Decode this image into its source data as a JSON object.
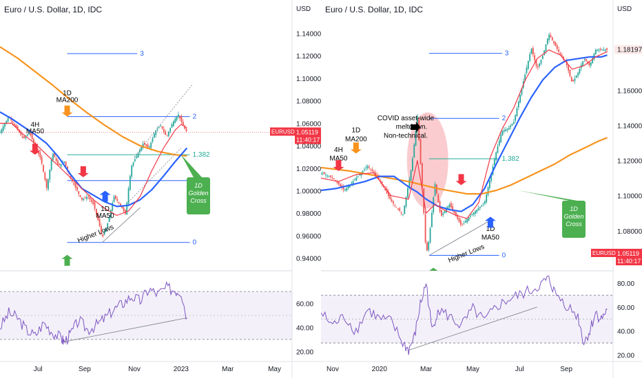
{
  "chart_data": [
    {
      "type": "line",
      "title": "Euro / U.S. Dollar, 1D, IDC",
      "ylabel": "USD",
      "ylim": [
        0.93,
        1.155
      ],
      "ytick_labels": [
        "1.14000",
        "1.12000",
        "1.10000",
        "1.08000",
        "1.06000",
        "1.04000",
        "1.02000",
        "1.00000",
        "0.98000",
        "0.96000",
        "0.94000"
      ],
      "yticks": [
        1.14,
        1.12,
        1.1,
        1.08,
        1.06,
        1.04,
        1.02,
        1.0,
        0.98,
        0.96,
        0.94
      ],
      "xlim": [
        0,
        100
      ],
      "x_tick_labels": [
        "Jul",
        "Sep",
        "Nov",
        "2023",
        "Mar",
        "May"
      ],
      "x_ticks": [
        13,
        29,
        46,
        62,
        78,
        94
      ],
      "last_x": 64,
      "price_badge": {
        "symbol": "EURUSD",
        "value": "1.05119",
        "countdown": "11:40:17",
        "color": "#f23645"
      },
      "price_path": {
        "x": [
          0,
          3,
          5,
          8,
          10,
          12,
          14,
          16,
          17,
          18,
          20,
          22,
          24,
          26,
          28,
          30,
          32,
          34,
          35,
          37,
          39,
          41,
          43,
          44,
          45,
          47,
          49,
          51,
          53,
          55,
          57,
          59,
          61,
          62,
          63,
          64
        ],
        "y": [
          1.052,
          1.066,
          1.058,
          1.046,
          1.052,
          1.04,
          1.028,
          1.002,
          1.018,
          1.034,
          1.022,
          1.026,
          1.012,
          1.002,
          0.992,
          0.995,
          0.988,
          0.97,
          0.958,
          0.972,
          0.995,
          0.988,
          0.979,
          1.002,
          1.022,
          1.032,
          1.042,
          1.038,
          1.052,
          1.058,
          1.048,
          1.06,
          1.068,
          1.062,
          1.056,
          1.052
        ]
      },
      "series": [
        {
          "name": "1D MA200",
          "color": "#f7931e",
          "values_x": [
            0,
            6,
            12,
            18,
            24,
            30,
            36,
            42,
            48,
            54,
            60,
            64
          ],
          "values_y": [
            1.128,
            1.118,
            1.106,
            1.094,
            1.081,
            1.069,
            1.058,
            1.048,
            1.04,
            1.035,
            1.032,
            1.031
          ]
        },
        {
          "name": "1D MA50",
          "color": "#2962ff",
          "values_x": [
            0,
            4,
            8,
            12,
            16,
            20,
            24,
            28,
            32,
            36,
            40,
            44,
            48,
            52,
            56,
            60,
            64
          ],
          "values_y": [
            1.07,
            1.064,
            1.057,
            1.05,
            1.042,
            1.03,
            1.015,
            1.002,
            0.996,
            0.99,
            0.986,
            0.987,
            0.992,
            1.001,
            1.013,
            1.026,
            1.038
          ]
        },
        {
          "name": "4H MA50",
          "color": "#f23645",
          "values_x": [
            0,
            4,
            8,
            12,
            16,
            20,
            24,
            28,
            32,
            36,
            40,
            44,
            48,
            52,
            56,
            60,
            62,
            64
          ],
          "values_y": [
            1.06,
            1.06,
            1.05,
            1.042,
            1.032,
            1.022,
            1.012,
            1.002,
            0.992,
            0.984,
            0.978,
            0.982,
            0.995,
            1.018,
            1.038,
            1.054,
            1.059,
            1.056
          ]
        }
      ],
      "fib_levels": [
        {
          "label": "3",
          "value": 1.122,
          "color": "#2962ff",
          "x0": 23,
          "x1": 47
        },
        {
          "label": "2",
          "value": 1.066,
          "color": "#2962ff",
          "x0": 23,
          "x1": 65
        },
        {
          "label": "1.382",
          "value": 1.032,
          "color": "#22ab94",
          "x0": 23,
          "x1": 65
        },
        {
          "label": "1",
          "value": 1.009,
          "color": "#2962ff",
          "x0": 23,
          "x1": 65
        },
        {
          "label": "0",
          "value": 0.954,
          "color": "#2962ff",
          "x0": 23,
          "x1": 65
        }
      ],
      "annotations": [
        {
          "text": "1D",
          "x": 23,
          "y": 1.085
        },
        {
          "text": "MA200",
          "x": 23,
          "y": 1.079
        },
        {
          "text": "4H",
          "x": 12,
          "y": 1.057
        },
        {
          "text": "MA50",
          "x": 12,
          "y": 1.051
        },
        {
          "text": "1D",
          "x": 36,
          "y": 0.982
        },
        {
          "text": "MA50",
          "x": 36,
          "y": 0.976
        },
        {
          "text": "Higher Lows",
          "x": 33,
          "y": 0.96
        }
      ],
      "golden_cross": {
        "lines": [
          "1D",
          "Golden",
          "Cross"
        ],
        "color": "#4caf50"
      },
      "rsi": {
        "ylim": [
          15,
          85
        ],
        "tick_labels": [
          "60.00",
          "40.00",
          "20.00"
        ],
        "ticks": [
          60,
          40,
          20
        ],
        "band": [
          30,
          70
        ],
        "mid": 50,
        "x": [
          0,
          3,
          6,
          9,
          12,
          15,
          18,
          21,
          22,
          24,
          27,
          30,
          33,
          36,
          39,
          42,
          45,
          48,
          51,
          54,
          57,
          60,
          62,
          64
        ],
        "y": [
          40,
          52,
          48,
          38,
          33,
          44,
          36,
          31,
          28,
          34,
          46,
          38,
          42,
          48,
          55,
          60,
          66,
          62,
          72,
          68,
          73,
          71,
          70,
          48
        ]
      }
    },
    {
      "type": "line",
      "title": "Euro / U.S. Dollar, 1D, IDC",
      "ylabel": "USD",
      "ylim": [
        1.058,
        1.202
      ],
      "ytick_labels": [
        "1.16000",
        "1.14000",
        "1.12000",
        "1.10000",
        "1.08000"
      ],
      "yticks": [
        1.16,
        1.14,
        1.12,
        1.1,
        1.08
      ],
      "top_tick_label": "1.18197",
      "xlim": [
        0,
        100
      ],
      "x_tick_labels": [
        "Nov",
        "2020",
        "Mar",
        "May",
        "Jul",
        "Sep"
      ],
      "x_ticks": [
        4,
        20,
        36,
        52,
        68,
        84
      ],
      "last_x": 98,
      "price_badge": {
        "symbol": "EURUSD",
        "value": "1.05119",
        "countdown": "11:40:17",
        "color": "#f23645"
      },
      "price_path": {
        "x": [
          0,
          4,
          8,
          12,
          16,
          20,
          24,
          28,
          31,
          33,
          35,
          36,
          37,
          39,
          41,
          44,
          48,
          52,
          56,
          60,
          62,
          64,
          66,
          70,
          72,
          74,
          76,
          78,
          80,
          82,
          84,
          86,
          88,
          90,
          92,
          94,
          96,
          98
        ],
        "y": [
          1.113,
          1.11,
          1.103,
          1.11,
          1.117,
          1.109,
          1.097,
          1.089,
          1.116,
          1.145,
          1.096,
          1.066,
          1.075,
          1.107,
          1.088,
          1.095,
          1.083,
          1.09,
          1.096,
          1.125,
          1.137,
          1.138,
          1.142,
          1.17,
          1.184,
          1.172,
          1.18,
          1.192,
          1.186,
          1.18,
          1.175,
          1.164,
          1.17,
          1.178,
          1.174,
          1.183,
          1.183,
          1.183
        ]
      },
      "series": [
        {
          "name": "1D MA200",
          "color": "#f7931e",
          "values_x": [
            0,
            10,
            20,
            30,
            40,
            50,
            55,
            60,
            65,
            70,
            75,
            80,
            85,
            90,
            95,
            98
          ],
          "values_y": [
            1.116,
            1.114,
            1.111,
            1.108,
            1.104,
            1.101,
            1.101,
            1.103,
            1.106,
            1.11,
            1.114,
            1.118,
            1.123,
            1.127,
            1.131,
            1.133
          ]
        },
        {
          "name": "1D MA50",
          "color": "#2962ff",
          "values_x": [
            0,
            5,
            10,
            15,
            20,
            25,
            30,
            33,
            36,
            40,
            44,
            48,
            52,
            56,
            60,
            64,
            68,
            72,
            76,
            80,
            84,
            88,
            92,
            96,
            98
          ],
          "values_y": [
            1.103,
            1.104,
            1.106,
            1.108,
            1.111,
            1.111,
            1.105,
            1.102,
            1.098,
            1.094,
            1.092,
            1.091,
            1.095,
            1.104,
            1.118,
            1.131,
            1.144,
            1.156,
            1.166,
            1.173,
            1.177,
            1.178,
            1.179,
            1.179,
            1.18
          ]
        },
        {
          "name": "4H MA50",
          "color": "#f23645",
          "values_x": [
            0,
            6,
            12,
            18,
            24,
            30,
            33,
            36,
            39,
            42,
            46,
            50,
            54,
            58,
            62,
            66,
            70,
            74,
            78,
            82,
            86,
            90,
            94,
            98
          ],
          "values_y": [
            1.11,
            1.108,
            1.112,
            1.113,
            1.1,
            1.098,
            1.12,
            1.09,
            1.095,
            1.092,
            1.089,
            1.087,
            1.096,
            1.122,
            1.138,
            1.15,
            1.166,
            1.178,
            1.183,
            1.18,
            1.172,
            1.174,
            1.179,
            1.182
          ]
        }
      ],
      "fib_levels": [
        {
          "label": "3",
          "value": 1.181,
          "color": "#2962ff",
          "x0": 37,
          "x1": 62
        },
        {
          "label": "2",
          "value": 1.144,
          "color": "#2962ff",
          "x0": 37,
          "x1": 61
        },
        {
          "label": "1.382",
          "value": 1.121,
          "color": "#22ab94",
          "x0": 37,
          "x1": 61
        },
        {
          "label": "0",
          "value": 1.066,
          "color": "#2962ff",
          "x0": 37,
          "x1": 61
        }
      ],
      "annotations": [
        {
          "text": "4H",
          "x": 6,
          "y": 1.125
        },
        {
          "text": "MA50",
          "x": 6,
          "y": 1.12
        },
        {
          "text": "1D",
          "x": 12,
          "y": 1.136
        },
        {
          "text": "MA200",
          "x": 12,
          "y": 1.131
        },
        {
          "text": "COVID asset-wide",
          "x": 29,
          "y": 1.143
        },
        {
          "text": "meltdown.",
          "x": 31,
          "y": 1.138
        },
        {
          "text": "Non-technical.",
          "x": 29,
          "y": 1.133
        },
        {
          "text": "1D",
          "x": 58,
          "y": 1.08
        },
        {
          "text": "MA50",
          "x": 58,
          "y": 1.075
        },
        {
          "text": "Higher Lows",
          "x": 50,
          "y": 1.066
        }
      ],
      "golden_cross": {
        "lines": [
          "1D",
          "Golden",
          "Cross"
        ],
        "color": "#4caf50"
      },
      "rsi": {
        "ylim": [
          18,
          88
        ],
        "tick_labels": [
          "80.00",
          "60.00",
          "40.00",
          "20.00"
        ],
        "ticks": [
          80,
          60,
          40,
          20
        ],
        "band": [
          30,
          70
        ],
        "mid": 50,
        "x": [
          0,
          4,
          8,
          12,
          16,
          20,
          24,
          28,
          30,
          32,
          34,
          36,
          38,
          40,
          44,
          48,
          52,
          56,
          60,
          64,
          68,
          72,
          76,
          78,
          80,
          84,
          88,
          90,
          92,
          94,
          96,
          98
        ],
        "y": [
          55,
          45,
          52,
          40,
          58,
          50,
          48,
          30,
          24,
          35,
          62,
          80,
          40,
          58,
          52,
          44,
          58,
          48,
          60,
          66,
          70,
          74,
          80,
          84,
          72,
          62,
          52,
          30,
          40,
          55,
          50,
          58
        ]
      }
    }
  ]
}
